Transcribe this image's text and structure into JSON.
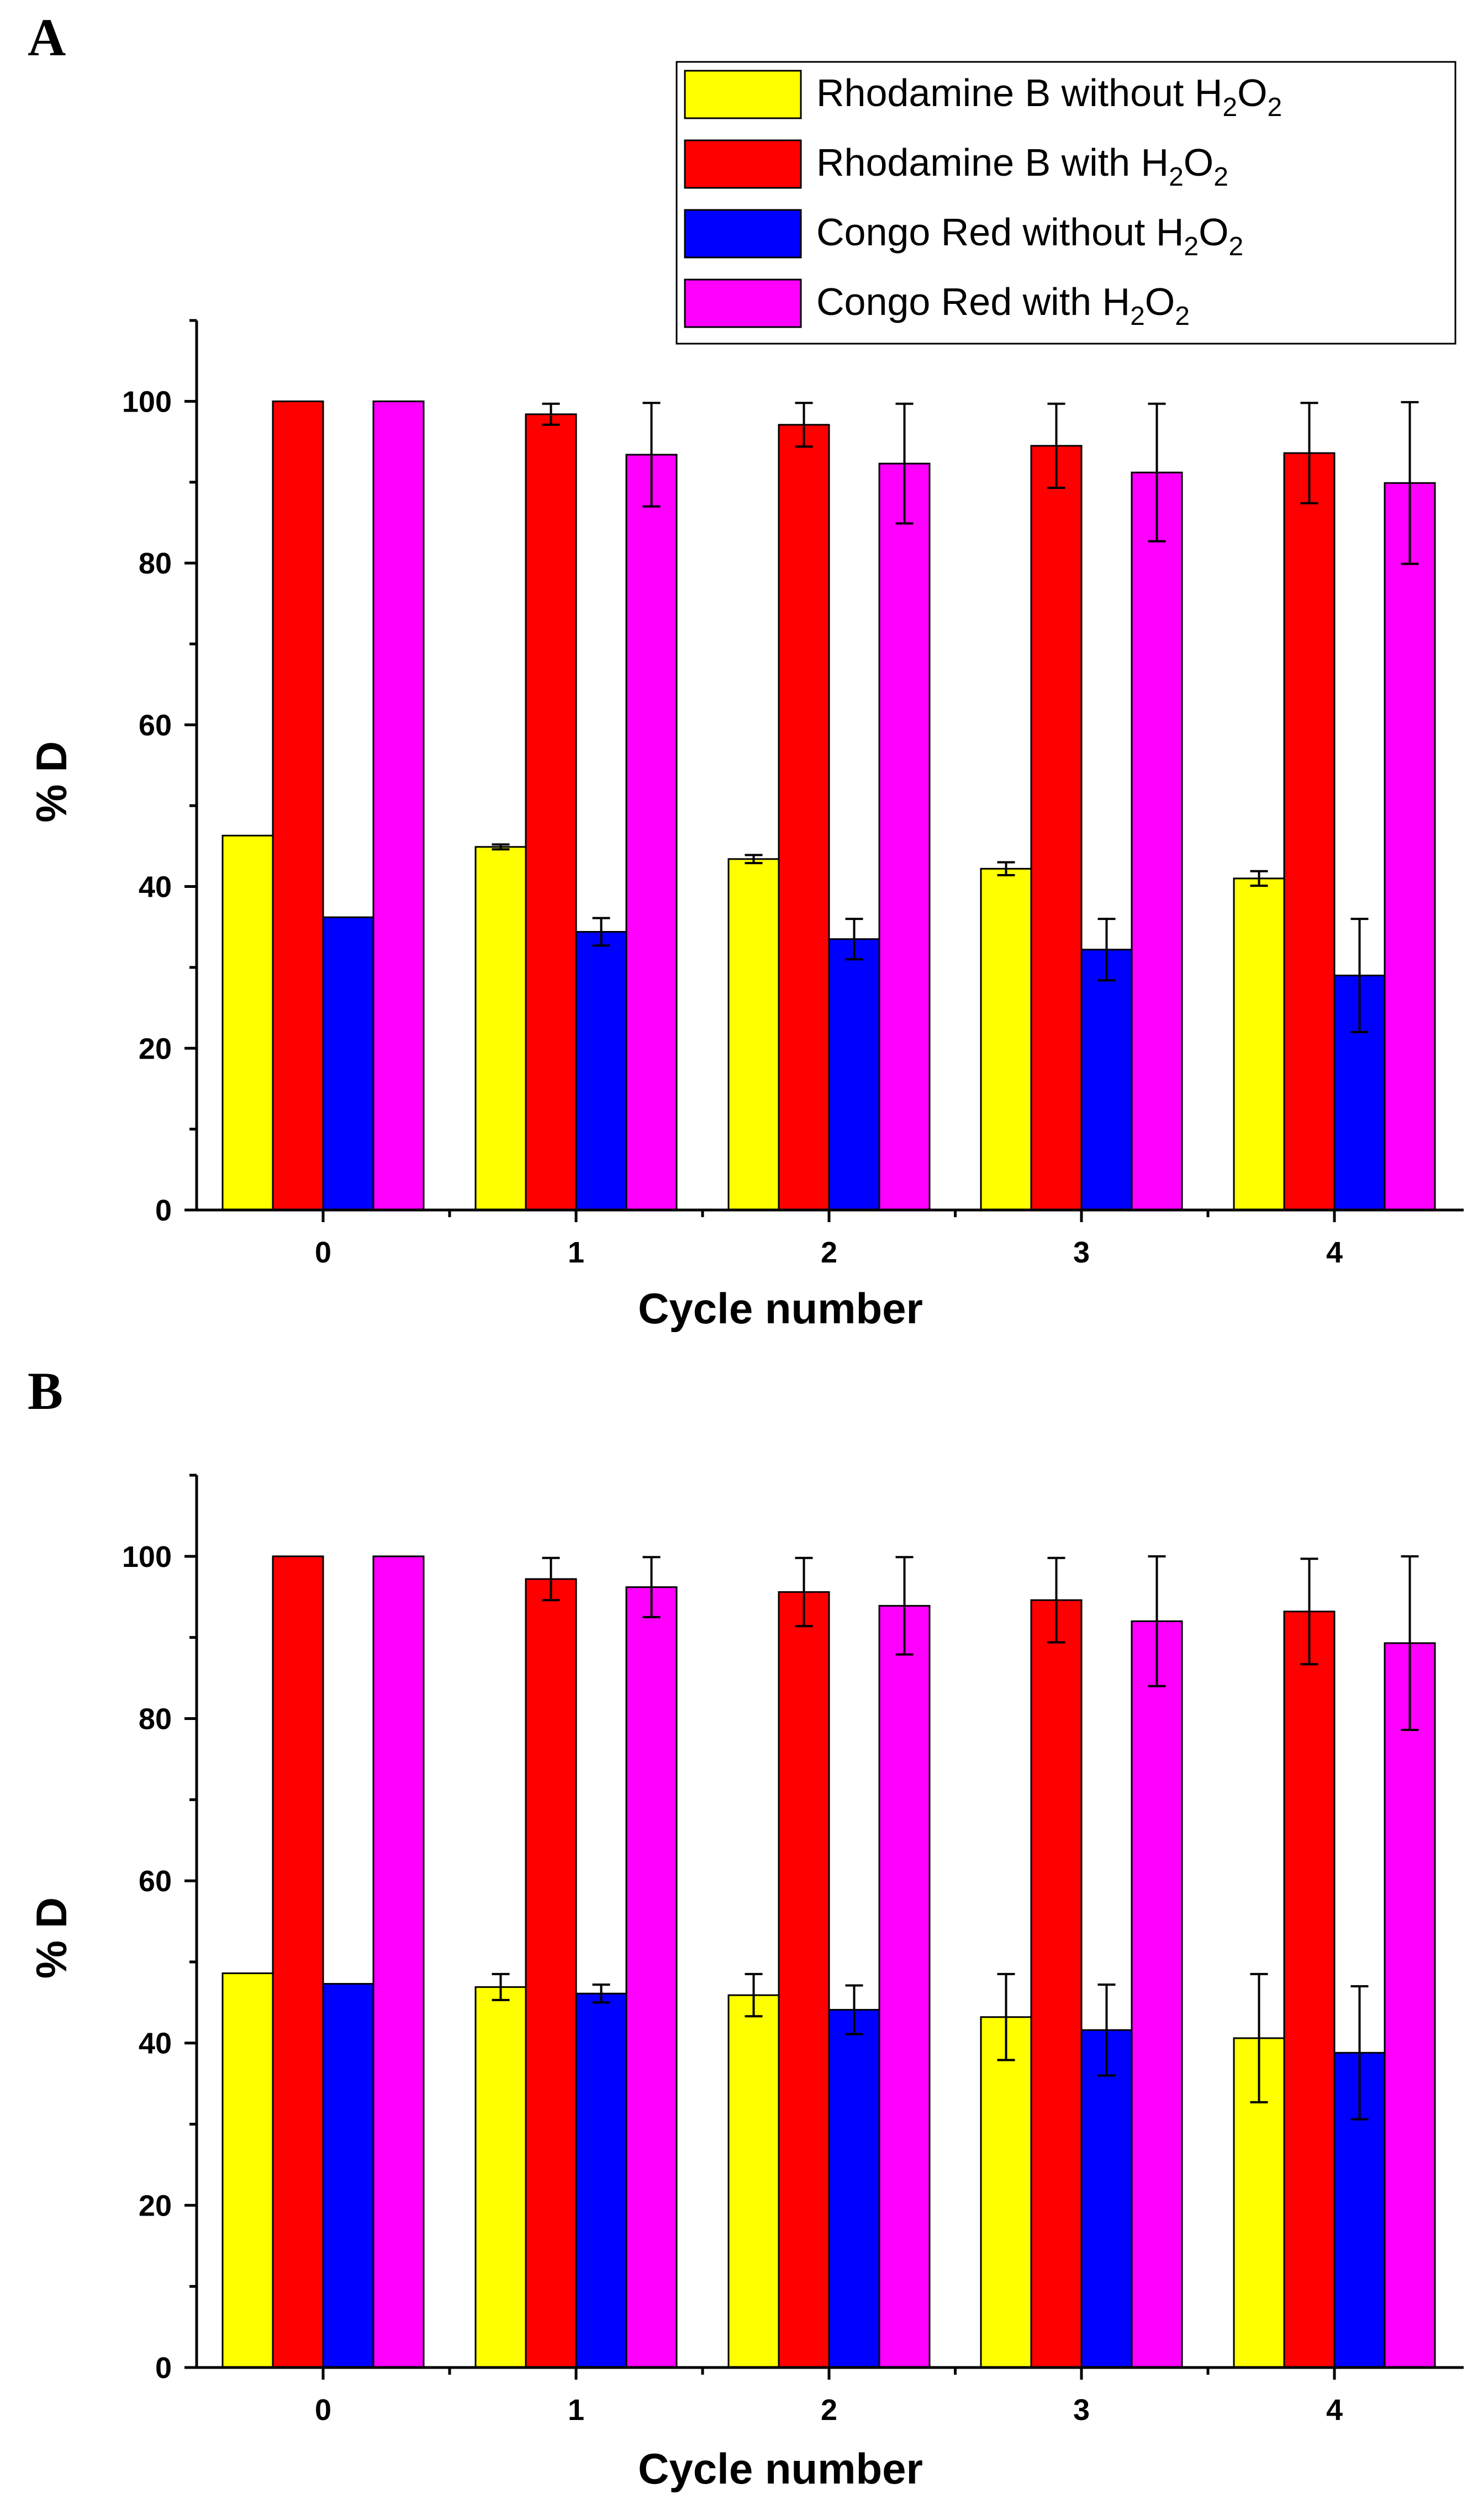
{
  "figure": {
    "background": "#ffffff"
  },
  "legend": [
    {
      "label": "Rhodamine B without H2O2",
      "parts": [
        "Rhodamine B without H",
        "2",
        "O",
        "2"
      ],
      "color": "#ffff00"
    },
    {
      "label": "Rhodamine B with H2O2",
      "parts": [
        "Rhodamine B with H",
        "2",
        "O",
        "2"
      ],
      "color": "#ff0000"
    },
    {
      "label": "Congo Red without H2O2",
      "parts": [
        "Congo Red without H",
        "2",
        "O",
        "2"
      ],
      "color": "#0000ff"
    },
    {
      "label": "Congo Red with H2O2",
      "parts": [
        "Congo Red with H",
        "2",
        "O",
        "2"
      ],
      "color": "#ff00ff"
    }
  ],
  "chart_data": [
    {
      "panel": "A",
      "type": "bar",
      "xlabel": "Cycle number",
      "ylabel": "% D",
      "ylim": [
        0,
        110
      ],
      "yticks": [
        0,
        20,
        40,
        60,
        80,
        100
      ],
      "categories": [
        "0",
        "1",
        "2",
        "3",
        "4"
      ],
      "grid": false,
      "legend_position": "top-right",
      "series": [
        {
          "name": "Rhodamine B without H2O2",
          "color": "#ffff00",
          "values": [
            46.3,
            44.9,
            43.4,
            42.2,
            41.0
          ],
          "errors": [
            0,
            0.3,
            0.5,
            0.8,
            0.9
          ]
        },
        {
          "name": "Rhodamine B with H2O2",
          "color": "#ff0000",
          "values": [
            100,
            98.4,
            97.1,
            94.5,
            93.6
          ],
          "errors": [
            0,
            1.3,
            2.7,
            5.2,
            6.2
          ]
        },
        {
          "name": "Congo Red without H2O2",
          "color": "#0000ff",
          "values": [
            36.2,
            34.4,
            33.5,
            32.2,
            29.0
          ],
          "errors": [
            0,
            1.7,
            2.5,
            3.8,
            7.0
          ]
        },
        {
          "name": "Congo Red with H2O2",
          "color": "#ff00ff",
          "values": [
            100,
            93.4,
            92.3,
            91.2,
            89.9
          ],
          "errors": [
            0,
            6.4,
            7.4,
            8.5,
            10.0
          ]
        }
      ]
    },
    {
      "panel": "B",
      "type": "bar",
      "xlabel": "Cycle number",
      "ylabel": "% D",
      "ylim": [
        0,
        110
      ],
      "yticks": [
        0,
        20,
        40,
        60,
        80,
        100
      ],
      "categories": [
        "0",
        "1",
        "2",
        "3",
        "4"
      ],
      "grid": false,
      "series": [
        {
          "name": "Rhodamine B without H2O2",
          "color": "#ffff00",
          "values": [
            48.6,
            46.9,
            45.9,
            43.2,
            40.6
          ],
          "errors": [
            0,
            1.6,
            2.6,
            5.3,
            7.9
          ]
        },
        {
          "name": "Rhodamine B with H2O2",
          "color": "#ff0000",
          "values": [
            100,
            97.2,
            95.6,
            94.6,
            93.2
          ],
          "errors": [
            0,
            2.6,
            4.2,
            5.2,
            6.5
          ]
        },
        {
          "name": "Congo Red without H2O2",
          "color": "#0000ff",
          "values": [
            47.3,
            46.1,
            44.1,
            41.6,
            38.8
          ],
          "errors": [
            0,
            1.1,
            3.0,
            5.6,
            8.2
          ]
        },
        {
          "name": "Congo Red with H2O2",
          "color": "#ff00ff",
          "values": [
            100,
            96.2,
            93.9,
            92.0,
            89.3
          ],
          "errors": [
            0,
            3.7,
            6.0,
            8.0,
            10.7
          ]
        }
      ]
    }
  ]
}
